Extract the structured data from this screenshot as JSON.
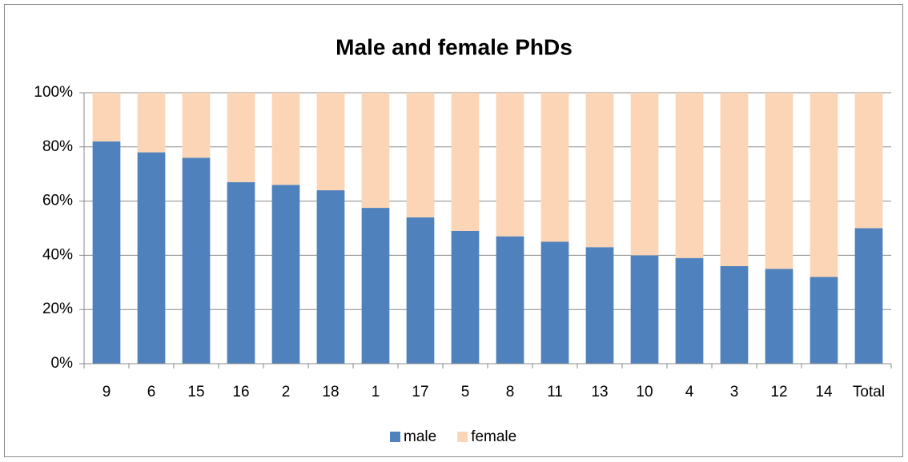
{
  "chart_data": {
    "type": "stacked_bar",
    "title": "Male and female PhDs",
    "categories": [
      "9",
      "6",
      "15",
      "16",
      "2",
      "18",
      "1",
      "17",
      "5",
      "8",
      "11",
      "13",
      "10",
      "4",
      "3",
      "12",
      "14",
      "Total"
    ],
    "series": [
      {
        "name": "male",
        "color": "#4f81bd",
        "values": [
          82,
          78,
          76,
          67,
          66,
          64,
          57.5,
          54,
          49,
          47,
          45,
          43,
          40,
          39,
          36,
          35,
          32,
          50
        ]
      },
      {
        "name": "female",
        "color": "#fbd5b5",
        "values": [
          18,
          22,
          24,
          33,
          34,
          36,
          42.5,
          46,
          51,
          53,
          55,
          57,
          60,
          61,
          64,
          65,
          68,
          50
        ]
      }
    ],
    "ylim": [
      0,
      100
    ],
    "yticks": [
      {
        "value": 0,
        "label": "0%"
      },
      {
        "value": 20,
        "label": "20%"
      },
      {
        "value": 40,
        "label": "40%"
      },
      {
        "value": 60,
        "label": "60%"
      },
      {
        "value": 80,
        "label": "80%"
      },
      {
        "value": 100,
        "label": "100%"
      }
    ],
    "grid": true,
    "legend": "bottom"
  }
}
